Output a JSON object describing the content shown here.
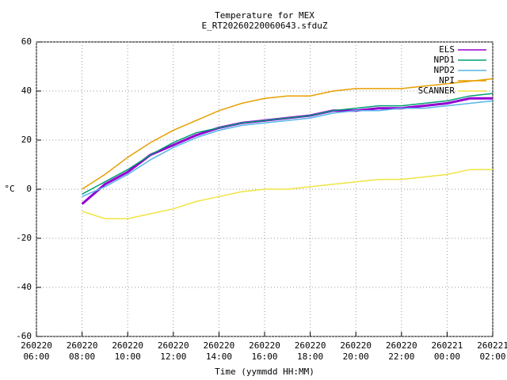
{
  "chart_data": {
    "type": "line",
    "title": "Temperature for MEX",
    "subtitle": "E_RT20260220060643.sfduZ",
    "x_label": "Time (yymmdd HH:MM)",
    "y_label": "°C",
    "x": [
      "260220 08:00",
      "260220 09:00",
      "260220 10:00",
      "260220 11:00",
      "260220 12:00",
      "260220 13:00",
      "260220 14:00",
      "260220 15:00",
      "260220 16:00",
      "260220 17:00",
      "260220 18:00",
      "260220 19:00",
      "260220 20:00",
      "260220 21:00",
      "260220 22:00",
      "260220 23:00",
      "260221 00:00",
      "260221 01:00",
      "260221 02:00"
    ],
    "xlim": [
      "260220 06:00",
      "260221 02:00"
    ],
    "xticks": [
      "260220 06:00",
      "260220 08:00",
      "260220 10:00",
      "260220 12:00",
      "260220 14:00",
      "260220 16:00",
      "260220 18:00",
      "260220 20:00",
      "260220 22:00",
      "260221 00:00",
      "260221 02:00"
    ],
    "ylim": [
      -60,
      60
    ],
    "yticks": [
      -60,
      -40,
      -20,
      0,
      20,
      40,
      60
    ],
    "grid": true,
    "legend": "top-right",
    "series": [
      {
        "name": "ELS",
        "color": "#9400d3",
        "values": [
          -6,
          2,
          7,
          14,
          18,
          22,
          25,
          27,
          28,
          29,
          30,
          32,
          32,
          33,
          33,
          34,
          35,
          37,
          37
        ]
      },
      {
        "name": "NPD1",
        "color": "#009e73",
        "values": [
          -2,
          3,
          8,
          14,
          19,
          23,
          25,
          27,
          28,
          29,
          30,
          32,
          33,
          34,
          34,
          35,
          36,
          38,
          39
        ]
      },
      {
        "name": "NPD2",
        "color": "#56b4e9",
        "values": [
          -3,
          1,
          6,
          12,
          17,
          21,
          24,
          26,
          27,
          28,
          29,
          31,
          32,
          32,
          33,
          33,
          34,
          35,
          36
        ]
      },
      {
        "name": "NPI",
        "color": "#e69f00",
        "values": [
          0,
          6,
          13,
          19,
          24,
          28,
          32,
          35,
          37,
          38,
          38,
          40,
          41,
          41,
          41,
          42,
          43,
          44,
          45
        ]
      },
      {
        "name": "SCANNER",
        "color": "#f0e442",
        "values": [
          -9,
          -12,
          -12,
          -10,
          -8,
          -5,
          -3,
          -1,
          0,
          0,
          1,
          2,
          3,
          4,
          4,
          5,
          6,
          8,
          8
        ]
      }
    ]
  }
}
